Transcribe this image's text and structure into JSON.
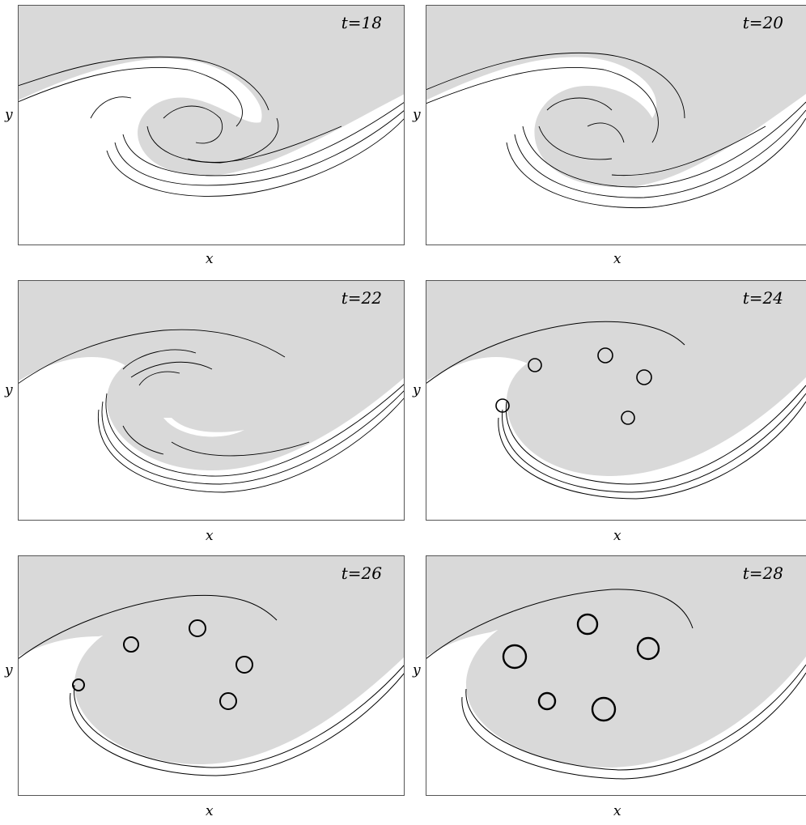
{
  "panels": [
    {
      "time": "t=18",
      "xlabel": "x",
      "ylabel": "y"
    },
    {
      "time": "t=20",
      "xlabel": "x",
      "ylabel": "y"
    },
    {
      "time": "t=22",
      "xlabel": "x",
      "ylabel": "y"
    },
    {
      "time": "t=24",
      "xlabel": "x",
      "ylabel": "y"
    },
    {
      "time": "t=26",
      "xlabel": "x",
      "ylabel": "y"
    },
    {
      "time": "t=28",
      "xlabel": "x",
      "ylabel": "y"
    }
  ],
  "colors": {
    "fill": "#d9d9d9",
    "line": "#000000",
    "frame": "#555555"
  }
}
